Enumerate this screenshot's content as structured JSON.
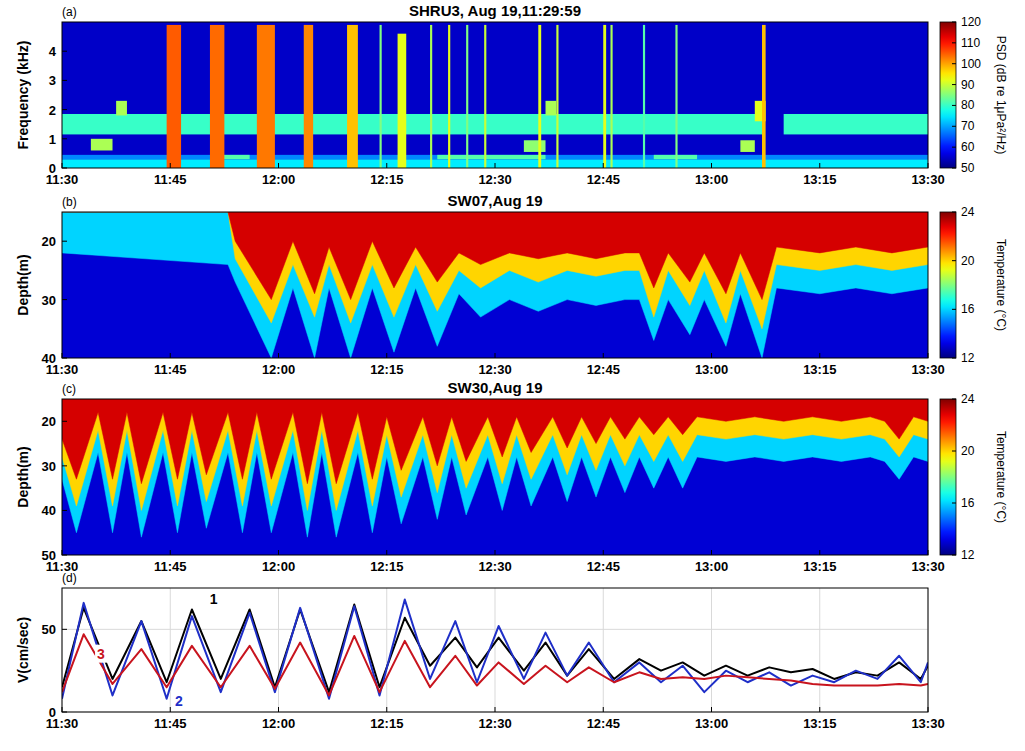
{
  "chart_data": [
    {
      "type": "heatmap",
      "title": "SHRU3, Aug 19,11:29:59",
      "panel_label": "(a)",
      "y_label": "Frequency (kHz)",
      "xlim": [
        690,
        810
      ],
      "xticks": [
        {
          "value": 690,
          "label": "11:30"
        },
        {
          "value": 705,
          "label": "11:45"
        },
        {
          "value": 720,
          "label": "12:00"
        },
        {
          "value": 735,
          "label": "12:15"
        },
        {
          "value": 750,
          "label": "12:30"
        },
        {
          "value": 765,
          "label": "12:45"
        },
        {
          "value": 780,
          "label": "13:00"
        },
        {
          "value": 795,
          "label": "13:15"
        },
        {
          "value": 810,
          "label": "13:30"
        }
      ],
      "ylim": [
        0,
        5
      ],
      "yticks": [
        0,
        1,
        2,
        3,
        4
      ],
      "cells": [
        {
          "t0": 690,
          "t1": 810,
          "f0": 0,
          "f1": 5,
          "value": 55
        },
        {
          "t0": 690,
          "t1": 810,
          "f0": 0,
          "f1": 0.3,
          "value": 75
        },
        {
          "t0": 690,
          "t1": 810,
          "f0": 0.3,
          "f1": 0.45,
          "value": 68
        },
        {
          "t0": 690,
          "t1": 787,
          "f0": 1.15,
          "f1": 1.85,
          "value": 80
        },
        {
          "t0": 790,
          "t1": 810,
          "f0": 1.15,
          "f1": 1.85,
          "value": 80
        },
        {
          "t0": 694,
          "t1": 697,
          "f0": 0.6,
          "f1": 1.0,
          "value": 88
        },
        {
          "t0": 697.5,
          "t1": 699,
          "f0": 1.8,
          "f1": 2.3,
          "value": 88
        },
        {
          "t0": 711,
          "t1": 716,
          "f0": 0.3,
          "f1": 0.45,
          "value": 82
        },
        {
          "t0": 742,
          "t1": 757,
          "f0": 0.3,
          "f1": 0.45,
          "value": 82
        },
        {
          "t0": 754,
          "t1": 757,
          "f0": 0.55,
          "f1": 0.95,
          "value": 86
        },
        {
          "t0": 757,
          "t1": 758.5,
          "f0": 1.8,
          "f1": 2.3,
          "value": 88
        },
        {
          "t0": 772,
          "t1": 778,
          "f0": 0.3,
          "f1": 0.45,
          "value": 82
        },
        {
          "t0": 784,
          "t1": 786,
          "f0": 0.55,
          "f1": 0.95,
          "value": 88
        },
        {
          "t0": 786,
          "t1": 787.5,
          "f0": 1.6,
          "f1": 2.3,
          "value": 92
        },
        {
          "t0": 704.5,
          "t1": 706.5,
          "f0": 0,
          "f1": 4.9,
          "value": 105
        },
        {
          "t0": 710.5,
          "t1": 712.5,
          "f0": 0,
          "f1": 4.9,
          "value": 104
        },
        {
          "t0": 717,
          "t1": 719.5,
          "f0": 0,
          "f1": 4.9,
          "value": 103
        },
        {
          "t0": 723.5,
          "t1": 724.8,
          "f0": 0,
          "f1": 4.9,
          "value": 102
        },
        {
          "t0": 729.5,
          "t1": 731,
          "f0": 0,
          "f1": 4.9,
          "value": 98
        },
        {
          "t0": 736.5,
          "t1": 737.7,
          "f0": 0,
          "f1": 4.6,
          "value": 92
        },
        {
          "t0": 734,
          "t1": 734.3,
          "f0": 0,
          "f1": 4.9,
          "value": 85
        },
        {
          "t0": 741,
          "t1": 741.3,
          "f0": 0,
          "f1": 4.9,
          "value": 88
        },
        {
          "t0": 743.5,
          "t1": 743.8,
          "f0": 0,
          "f1": 4.9,
          "value": 92
        },
        {
          "t0": 746,
          "t1": 746.3,
          "f0": 0,
          "f1": 4.9,
          "value": 85
        },
        {
          "t0": 748.5,
          "t1": 748.8,
          "f0": 0,
          "f1": 4.9,
          "value": 90
        },
        {
          "t0": 756,
          "t1": 756.4,
          "f0": 0,
          "f1": 4.9,
          "value": 92
        },
        {
          "t0": 758.5,
          "t1": 758.8,
          "f0": 0,
          "f1": 4.9,
          "value": 90
        },
        {
          "t0": 765,
          "t1": 765.4,
          "f0": 0,
          "f1": 4.9,
          "value": 92
        },
        {
          "t0": 766,
          "t1": 766.3,
          "f0": 0,
          "f1": 4.9,
          "value": 88
        },
        {
          "t0": 770.5,
          "t1": 770.8,
          "f0": 0,
          "f1": 4.9,
          "value": 82
        },
        {
          "t0": 775,
          "t1": 775.3,
          "f0": 0,
          "f1": 4.9,
          "value": 85
        },
        {
          "t0": 787,
          "t1": 787.5,
          "f0": 0,
          "f1": 4.9,
          "value": 98
        }
      ],
      "colorbar": {
        "label": "PSD (dB re 1μPa²/Hz)",
        "range": [
          50,
          120
        ],
        "ticks": [
          50,
          60,
          70,
          80,
          90,
          100,
          110,
          120
        ]
      }
    },
    {
      "type": "contour",
      "title": "SW07,Aug 19",
      "panel_label": "(b)",
      "y_label": "Depth(m)",
      "xlim": [
        690,
        810
      ],
      "xticks": [
        {
          "value": 690,
          "label": "11:30"
        },
        {
          "value": 705,
          "label": "11:45"
        },
        {
          "value": 720,
          "label": "12:00"
        },
        {
          "value": 735,
          "label": "12:15"
        },
        {
          "value": 750,
          "label": "12:30"
        },
        {
          "value": 765,
          "label": "12:45"
        },
        {
          "value": 780,
          "label": "13:00"
        },
        {
          "value": 795,
          "label": "13:15"
        },
        {
          "value": 810,
          "label": "13:30"
        }
      ],
      "ylim": [
        40,
        15
      ],
      "yticks": [
        20,
        30,
        40
      ],
      "x": [
        690,
        713,
        714,
        719,
        722,
        725,
        727,
        730,
        733,
        736,
        739,
        742,
        745,
        748,
        752,
        756,
        760,
        764,
        768,
        770,
        772,
        774,
        777,
        779,
        782,
        784,
        787,
        789,
        795,
        800,
        805,
        810
      ],
      "isotherms": [
        {
          "temperature": 22,
          "depth": [
            15,
            15,
            20,
            30,
            20,
            29,
            21,
            30,
            20,
            28,
            21,
            27,
            22,
            24,
            22,
            23,
            22,
            23,
            22,
            22,
            28,
            22,
            27,
            22,
            29,
            22,
            30,
            21,
            22,
            21,
            22,
            21
          ]
        },
        {
          "temperature": 18,
          "depth": [
            15,
            15,
            23,
            34,
            24,
            33,
            24,
            34,
            24,
            33,
            24,
            32,
            25,
            28,
            25,
            27,
            25,
            26,
            25,
            25,
            33,
            25,
            31,
            25,
            34,
            25,
            35,
            24,
            25,
            24,
            25,
            24
          ]
        },
        {
          "temperature": 14,
          "depth": [
            22,
            24,
            27,
            40,
            28,
            40,
            28,
            40,
            28,
            39,
            28,
            38,
            29,
            33,
            30,
            32,
            30,
            31,
            30,
            30,
            37,
            30,
            36,
            30,
            38,
            29,
            40,
            28,
            29,
            28,
            29,
            28
          ]
        }
      ],
      "colorbar": {
        "label": "Temperature (°C)",
        "range": [
          12,
          24
        ],
        "ticks": [
          12,
          16,
          20,
          24
        ]
      }
    },
    {
      "type": "contour",
      "title": "SW30,Aug 19",
      "panel_label": "(c)",
      "y_label": "Depth(m)",
      "xlim": [
        690,
        810
      ],
      "xticks": [
        {
          "value": 690,
          "label": "11:30"
        },
        {
          "value": 705,
          "label": "11:45"
        },
        {
          "value": 720,
          "label": "12:00"
        },
        {
          "value": 735,
          "label": "12:15"
        },
        {
          "value": 750,
          "label": "12:30"
        },
        {
          "value": 765,
          "label": "12:45"
        },
        {
          "value": 780,
          "label": "13:00"
        },
        {
          "value": 795,
          "label": "13:15"
        },
        {
          "value": 810,
          "label": "13:30"
        }
      ],
      "ylim": [
        50,
        15
      ],
      "yticks": [
        20,
        30,
        40,
        50
      ],
      "x": [
        690,
        692,
        695,
        697,
        699,
        701,
        704,
        706,
        708,
        710,
        713,
        715,
        717,
        719,
        722,
        724,
        726,
        728,
        731,
        733,
        735,
        737,
        740,
        742,
        744,
        746,
        749,
        751,
        753,
        755,
        758,
        760,
        762,
        764,
        766,
        768,
        770,
        772,
        774,
        776,
        778,
        782,
        786,
        790,
        794,
        798,
        802,
        804,
        806,
        808,
        810
      ],
      "isotherms": [
        {
          "temperature": 22,
          "depth": [
            24,
            33,
            18,
            33,
            18,
            34,
            18,
            33,
            18,
            32,
            18,
            33,
            18,
            33,
            18,
            34,
            18,
            34,
            18,
            33,
            19,
            31,
            19,
            30,
            19,
            29,
            19,
            28,
            19,
            27,
            19,
            26,
            19,
            25,
            19,
            24,
            19,
            23,
            19,
            23,
            19,
            20,
            19,
            20,
            19,
            20,
            19,
            20,
            24,
            19,
            20
          ]
        },
        {
          "temperature": 18,
          "depth": [
            28,
            39,
            22,
            39,
            22,
            40,
            22,
            39,
            22,
            38,
            22,
            39,
            22,
            39,
            22,
            40,
            22,
            40,
            22,
            39,
            23,
            37,
            23,
            36,
            23,
            35,
            23,
            34,
            23,
            33,
            23,
            32,
            23,
            31,
            23,
            30,
            23,
            29,
            23,
            29,
            23,
            24,
            23,
            24,
            23,
            24,
            23,
            24,
            28,
            23,
            24
          ]
        },
        {
          "temperature": 14,
          "depth": [
            33,
            45,
            27,
            45,
            27,
            46,
            27,
            45,
            27,
            44,
            27,
            45,
            27,
            45,
            27,
            46,
            27,
            46,
            27,
            45,
            28,
            43,
            28,
            42,
            28,
            41,
            28,
            40,
            28,
            39,
            28,
            38,
            28,
            37,
            28,
            36,
            28,
            35,
            28,
            35,
            28,
            29,
            28,
            29,
            28,
            29,
            28,
            29,
            33,
            28,
            29
          ]
        }
      ],
      "colorbar": {
        "label": "Temperature (°C)",
        "range": [
          12,
          24
        ],
        "ticks": [
          12,
          16,
          20,
          24
        ]
      }
    },
    {
      "type": "line",
      "panel_label": "(d)",
      "y_label": "V(cm/sec)",
      "grid": true,
      "xlim": [
        690,
        810
      ],
      "xticks": [
        {
          "value": 690,
          "label": "11:30"
        },
        {
          "value": 705,
          "label": "11:45"
        },
        {
          "value": 720,
          "label": "12:00"
        },
        {
          "value": 735,
          "label": "12:15"
        },
        {
          "value": 750,
          "label": "12:30"
        },
        {
          "value": 765,
          "label": "12:45"
        },
        {
          "value": 780,
          "label": "13:00"
        },
        {
          "value": 795,
          "label": "13:15"
        },
        {
          "value": 810,
          "label": "13:30"
        }
      ],
      "ylim": [
        0,
        75
      ],
      "yticks": [
        0,
        50
      ],
      "x": [
        690,
        693,
        697,
        701,
        704.5,
        708,
        712,
        716,
        719.5,
        723,
        727,
        730.5,
        734,
        737.5,
        741,
        744.5,
        747.5,
        750.5,
        754,
        757,
        760,
        763,
        766.5,
        770,
        773,
        776,
        779,
        782,
        785,
        788,
        791,
        794,
        797,
        800,
        803,
        806,
        809,
        810
      ],
      "series": [
        {
          "name": "1",
          "color": "#000000",
          "values": [
            15,
            63,
            20,
            55,
            18,
            62,
            20,
            62,
            15,
            62,
            12,
            65,
            15,
            57,
            28,
            45,
            27,
            45,
            25,
            42,
            22,
            38,
            20,
            32,
            25,
            30,
            22,
            28,
            22,
            27,
            24,
            26,
            20,
            24,
            22,
            30,
            20,
            28
          ]
        },
        {
          "name": "2",
          "color": "#1f2fc8",
          "values": [
            8,
            66,
            10,
            55,
            8,
            58,
            12,
            60,
            12,
            63,
            8,
            64,
            10,
            68,
            20,
            55,
            18,
            52,
            20,
            48,
            22,
            42,
            18,
            30,
            18,
            28,
            12,
            25,
            18,
            24,
            16,
            22,
            18,
            25,
            20,
            34,
            18,
            30
          ]
        },
        {
          "name": "3",
          "color": "#c8141e",
          "values": [
            12,
            47,
            17,
            38,
            15,
            40,
            15,
            40,
            14,
            42,
            10,
            46,
            12,
            43,
            15,
            34,
            16,
            30,
            17,
            28,
            18,
            27,
            18,
            24,
            20,
            21,
            20,
            22,
            21,
            20,
            19,
            17,
            16,
            16,
            16,
            17,
            16,
            17
          ]
        }
      ]
    }
  ]
}
